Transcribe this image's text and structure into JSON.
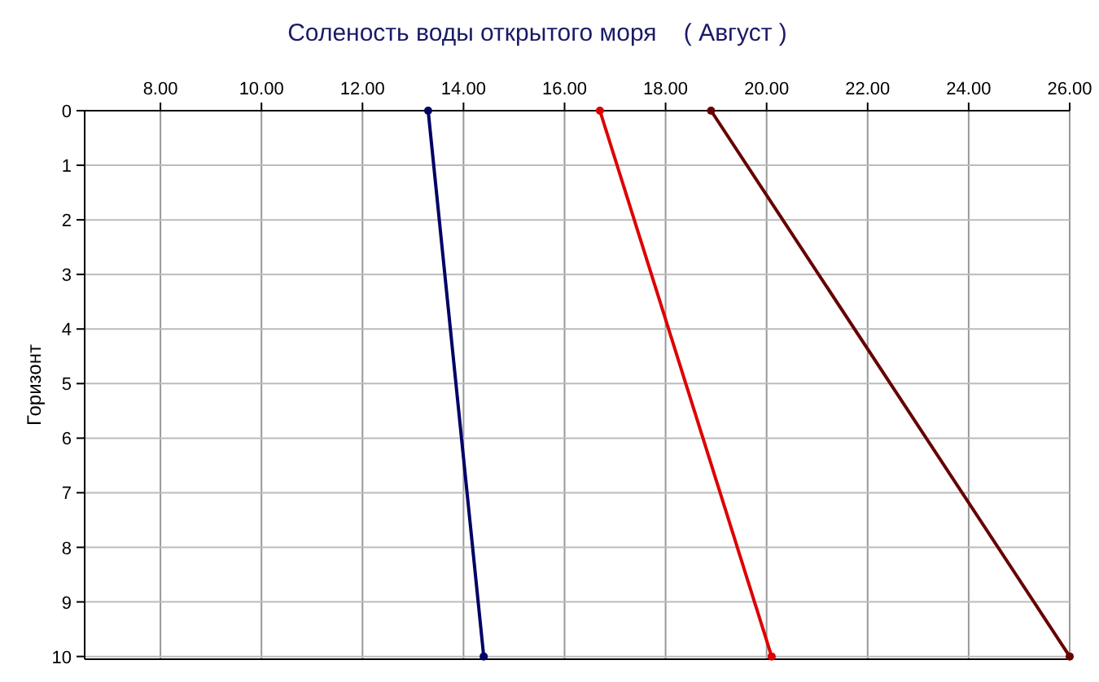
{
  "chart_data": {
    "type": "line",
    "title": "Соленость воды открытого моря    ( Август )",
    "ylabel": "Горизонт",
    "xlim": [
      6.5,
      26
    ],
    "xticks": [
      {
        "value": 8,
        "label": "8.00"
      },
      {
        "value": 10,
        "label": "10.00"
      },
      {
        "value": 12,
        "label": "12.00"
      },
      {
        "value": 14,
        "label": "14.00"
      },
      {
        "value": 16,
        "label": "16.00"
      },
      {
        "value": 18,
        "label": "18.00"
      },
      {
        "value": 20,
        "label": "20.00"
      },
      {
        "value": 22,
        "label": "22.00"
      },
      {
        "value": 24,
        "label": "24.00"
      },
      {
        "value": 26,
        "label": "26.00"
      }
    ],
    "ylim": [
      10.05,
      0
    ],
    "yticks": [
      0,
      1,
      2,
      3,
      4,
      5,
      6,
      7,
      8,
      9,
      10
    ],
    "grid": true,
    "marker": "circle",
    "line_style": "solid",
    "series": [
      {
        "color": "#000066",
        "x": [
          13.3,
          14.4
        ],
        "values": [
          0,
          10
        ]
      },
      {
        "color": "#dd0000",
        "x": [
          16.7,
          20.1
        ],
        "values": [
          0,
          10
        ]
      },
      {
        "color": "#660000",
        "x": [
          18.9,
          26
        ],
        "values": [
          0,
          10
        ]
      }
    ]
  }
}
